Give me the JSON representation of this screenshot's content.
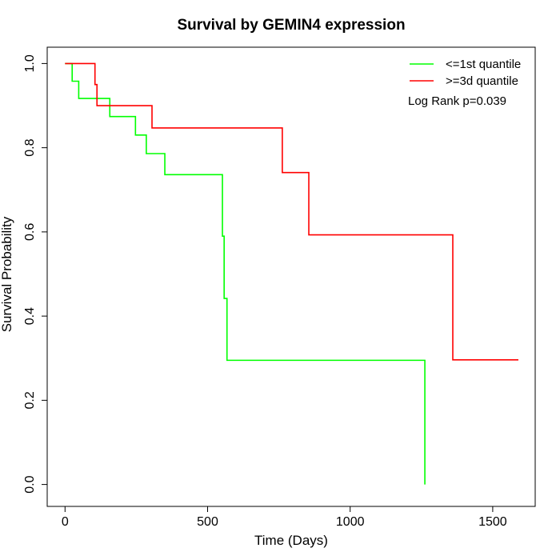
{
  "chart_data": {
    "type": "line",
    "title": "Survival by GEMIN4 expression",
    "xlabel": "Time (Days)",
    "ylabel": "Survival Probability",
    "xlim": [
      0,
      1600
    ],
    "ylim": [
      0,
      1
    ],
    "x_ticks": [
      0,
      500,
      1000,
      1500
    ],
    "y_ticks": [
      0.0,
      0.2,
      0.4,
      0.6,
      0.8,
      1.0
    ],
    "x_tick_labels": [
      "0",
      "500",
      "1000",
      "1500"
    ],
    "y_tick_labels": [
      "0.0",
      "0.2",
      "0.4",
      "0.6",
      "0.8",
      "1.0"
    ],
    "grid": false,
    "legend_position": "top-right",
    "annotation": "Log Rank p=0.039",
    "series": [
      {
        "name": "<=1st quantile",
        "color": "#00ff00",
        "step_points": [
          [
            0,
            1.0
          ],
          [
            25,
            0.958
          ],
          [
            48,
            0.917
          ],
          [
            157,
            0.874
          ],
          [
            247,
            0.83
          ],
          [
            285,
            0.786
          ],
          [
            350,
            0.736
          ],
          [
            552,
            0.59
          ],
          [
            558,
            0.442
          ],
          [
            568,
            0.295
          ],
          [
            1262,
            0.0
          ]
        ]
      },
      {
        "name": ">=3d quantile",
        "color": "#ff0000",
        "step_points": [
          [
            0,
            1.0
          ],
          [
            105,
            0.95
          ],
          [
            112,
            0.9
          ],
          [
            305,
            0.847
          ],
          [
            762,
            0.741
          ],
          [
            855,
            0.593
          ],
          [
            1360,
            0.296
          ],
          [
            1590,
            0.296
          ]
        ]
      }
    ]
  }
}
